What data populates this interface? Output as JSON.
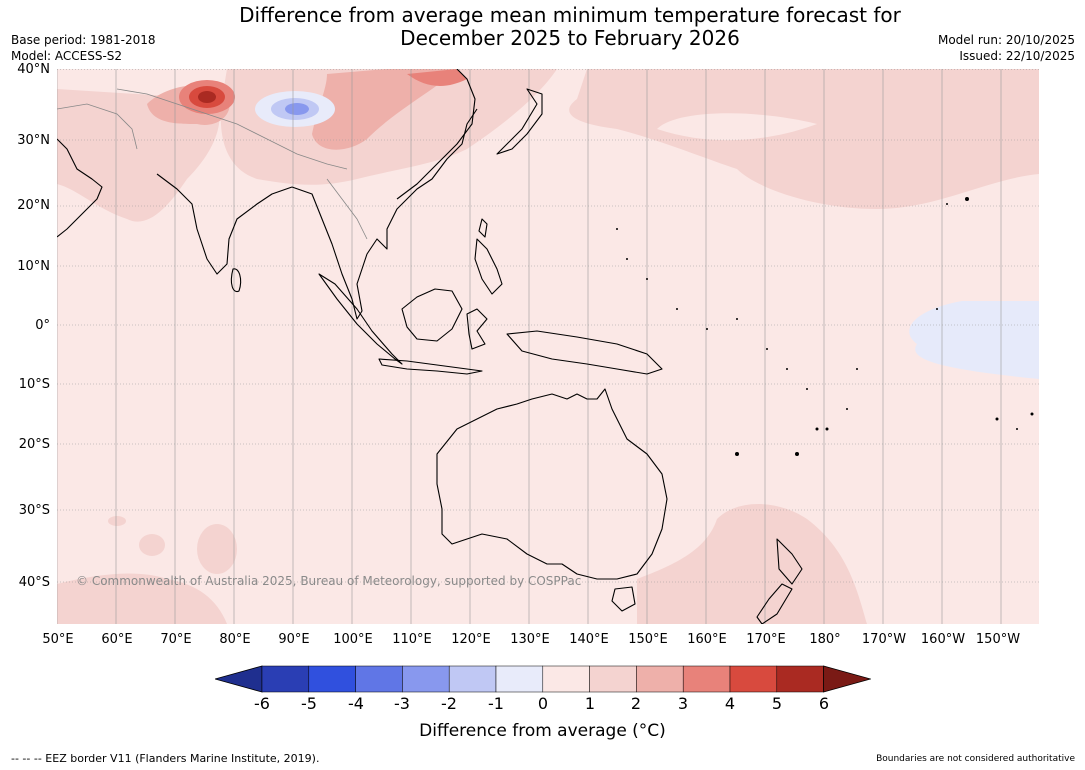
{
  "header": {
    "title_line1": "Difference from average mean minimum temperature forecast for",
    "title_line2": "December 2025 to February 2026",
    "base_period": "Base period: 1981-2018",
    "model": "Model: ACCESS-S2",
    "model_run": "Model run: 20/10/2025",
    "issued": "Issued: 22/10/2025"
  },
  "map": {
    "lat_labels": [
      "40°N",
      "30°N",
      "20°N",
      "10°N",
      "0°",
      "10°S",
      "20°S",
      "30°S",
      "40°S"
    ],
    "lon_labels": [
      "50°E",
      "60°E",
      "70°E",
      "80°E",
      "90°E",
      "100°E",
      "110°E",
      "120°E",
      "130°E",
      "140°E",
      "150°E",
      "160°E",
      "170°E",
      "180°",
      "170°W",
      "160°W",
      "150°W"
    ],
    "copyright": "© Commonwealth of Australia 2025, Bureau of Meteorology, supported by COSPPac",
    "anomaly_regions": [
      {
        "region": "northern India / Himalaya",
        "category": "+3 to +6",
        "color": "#c0392b"
      },
      {
        "region": "Tibetan Plateau",
        "category": "-3 to -1",
        "color": "#8fa0e8"
      },
      {
        "region": "eastern China",
        "category": "+1 to +3",
        "color": "#eeb0aa"
      },
      {
        "region": "north Pacific",
        "category": "+1 to +2",
        "color": "#f4d3d0"
      },
      {
        "region": "south-west Pacific / New Zealand",
        "category": "+1 to +2",
        "color": "#f4d3d0"
      },
      {
        "region": "central equatorial Pacific",
        "category": "-1 to 0",
        "color": "#e6eafa"
      },
      {
        "region": "remaining domain",
        "category": "0 to +1",
        "color": "#fbe8e6"
      }
    ]
  },
  "colorbar": {
    "ticks": [
      "-6",
      "-5",
      "-4",
      "-3",
      "-2",
      "-1",
      "0",
      "1",
      "2",
      "3",
      "4",
      "5",
      "6"
    ],
    "colors": [
      "#1f2f8f",
      "#2a3eb4",
      "#3050de",
      "#6076e6",
      "#8898ee",
      "#c0c8f4",
      "#e8ebfa",
      "#fbe8e6",
      "#f4d3d0",
      "#eeb0aa",
      "#e8827a",
      "#d84a3e",
      "#aa2a22",
      "#7a1a15"
    ],
    "label": "Difference from average (°C)"
  },
  "footer": {
    "eez_legend": "--  --  -- EEZ border V11 (Flanders Marine Institute, 2019).",
    "disclaimer": "Boundaries are not considered authoritative"
  }
}
